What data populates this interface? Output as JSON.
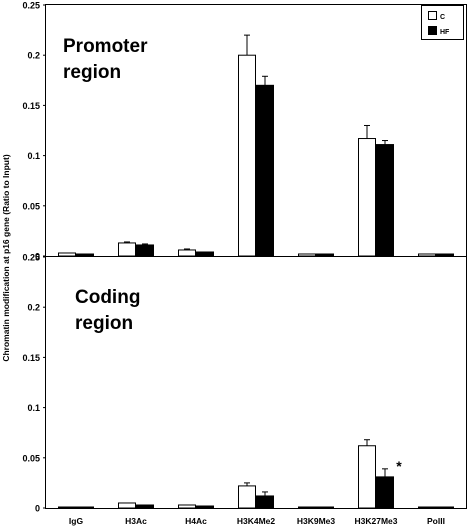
{
  "chart_data": {
    "type": "bar",
    "ylabel": "Chromatin modification at p16 gene (Ratio to Input)",
    "categories": [
      "IgG",
      "H3Ac",
      "H4Ac",
      "H3K4Me2",
      "H3K9Me3",
      "H3K27Me3",
      "PolII"
    ],
    "legend": {
      "position": "top-right",
      "entries": [
        {
          "label": "C",
          "color": "#ffffff"
        },
        {
          "label": "HF",
          "color": "#000000"
        }
      ]
    },
    "panels": [
      {
        "title_line1": "Promoter",
        "title_line2": "region",
        "ylim": [
          0,
          0.25
        ],
        "yticks": [
          0,
          0.05,
          0.1,
          0.15,
          0.2,
          0.25
        ],
        "ytick_labels": [
          "0",
          "0.05",
          "0.1",
          "0.15",
          "0.2",
          "0.25"
        ],
        "series": [
          {
            "name": "C",
            "values": [
              0.003,
              0.013,
              0.006,
              0.2,
              0.002,
              0.117,
              0.002
            ],
            "errors": [
              0,
              0.001,
              0.001,
              0.02,
              0,
              0.013,
              0
            ]
          },
          {
            "name": "HF",
            "values": [
              0.002,
              0.011,
              0.004,
              0.17,
              0.002,
              0.111,
              0.002
            ],
            "errors": [
              0,
              0.001,
              0,
              0.009,
              0,
              0.004,
              0
            ]
          }
        ],
        "annotations": []
      },
      {
        "title_line1": "Coding",
        "title_line2": "region",
        "ylim": [
          0,
          0.25
        ],
        "yticks": [
          0,
          0.05,
          0.1,
          0.15,
          0.2,
          0.25
        ],
        "ytick_labels": [
          "0",
          "0.05",
          "0.1",
          "0.15",
          "0.2",
          "0.25"
        ],
        "series": [
          {
            "name": "C",
            "values": [
              0.001,
              0.005,
              0.003,
              0.022,
              0.001,
              0.062,
              0.001
            ],
            "errors": [
              0,
              0,
              0,
              0.003,
              0,
              0.006,
              0
            ]
          },
          {
            "name": "HF",
            "values": [
              0.001,
              0.003,
              0.002,
              0.012,
              0.001,
              0.031,
              0.001
            ],
            "errors": [
              0,
              0,
              0,
              0.004,
              0,
              0.008,
              0
            ]
          }
        ],
        "annotations": [
          {
            "category": "H3K27Me3",
            "series": "HF",
            "text": "*"
          }
        ]
      }
    ]
  }
}
